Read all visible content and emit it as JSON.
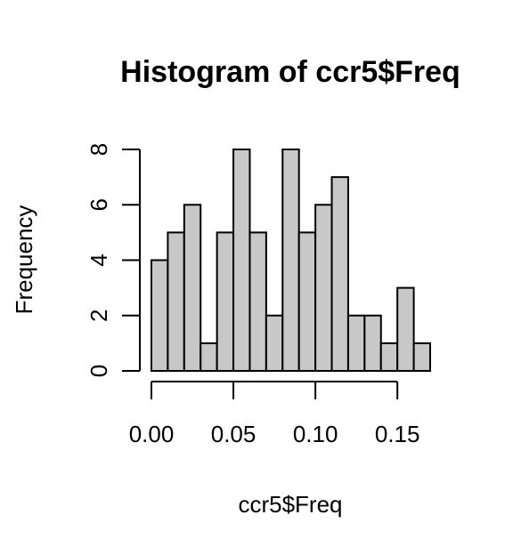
{
  "chart_data": {
    "type": "bar",
    "title": "Histogram of ccr5$Freq",
    "xlabel": "ccr5$Freq",
    "ylabel": "Frequency",
    "bin_width": 0.01,
    "bins": [
      {
        "start": 0.0,
        "end": 0.01,
        "count": 4
      },
      {
        "start": 0.01,
        "end": 0.02,
        "count": 5
      },
      {
        "start": 0.02,
        "end": 0.03,
        "count": 6
      },
      {
        "start": 0.03,
        "end": 0.04,
        "count": 1
      },
      {
        "start": 0.04,
        "end": 0.05,
        "count": 5
      },
      {
        "start": 0.05,
        "end": 0.06,
        "count": 8
      },
      {
        "start": 0.06,
        "end": 0.07,
        "count": 5
      },
      {
        "start": 0.07,
        "end": 0.08,
        "count": 2
      },
      {
        "start": 0.08,
        "end": 0.09,
        "count": 8
      },
      {
        "start": 0.09,
        "end": 0.1,
        "count": 5
      },
      {
        "start": 0.1,
        "end": 0.11,
        "count": 6
      },
      {
        "start": 0.11,
        "end": 0.12,
        "count": 7
      },
      {
        "start": 0.12,
        "end": 0.13,
        "count": 2
      },
      {
        "start": 0.13,
        "end": 0.14,
        "count": 2
      },
      {
        "start": 0.14,
        "end": 0.15,
        "count": 1
      },
      {
        "start": 0.15,
        "end": 0.16,
        "count": 3
      },
      {
        "start": 0.16,
        "end": 0.17,
        "count": 1
      }
    ],
    "xticks": [
      "0.00",
      "0.05",
      "0.10",
      "0.15"
    ],
    "yticks": [
      "0",
      "2",
      "4",
      "6",
      "8"
    ],
    "xlim": [
      0,
      0.17
    ],
    "ylim": [
      0,
      8
    ],
    "grid": false,
    "bar_color": "#c8c8c8",
    "edge_color": "#000000"
  }
}
